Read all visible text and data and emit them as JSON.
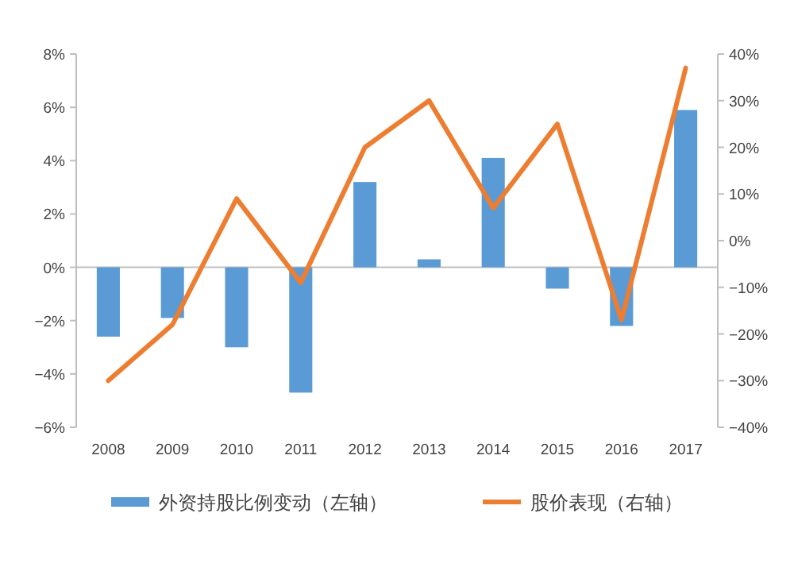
{
  "chart_data": {
    "type": "bar",
    "categories": [
      "2008",
      "2009",
      "2010",
      "2011",
      "2012",
      "2013",
      "2014",
      "2015",
      "2016",
      "2017"
    ],
    "series": [
      {
        "name": "外资持股比例变动（左轴）",
        "color": "#5b9bd5",
        "values": [
          -2.6,
          -1.9,
          -3.0,
          -4.7,
          3.2,
          0.3,
          4.1,
          -0.8,
          -2.2,
          5.9
        ]
      },
      {
        "name": "股价表现（右轴）",
        "type": "line",
        "axis": "y2",
        "color": "#ed7d31",
        "values": [
          -30,
          -18,
          9,
          -9,
          20,
          30,
          7,
          25,
          -17,
          37
        ]
      }
    ],
    "ylim": [
      -6,
      8
    ],
    "yticks": [
      {
        "value": -6,
        "label": "−6%"
      },
      {
        "value": -4,
        "label": "−4%"
      },
      {
        "value": -2,
        "label": "−2%"
      },
      {
        "value": 0,
        "label": "0%"
      },
      {
        "value": 2,
        "label": "2%"
      },
      {
        "value": 4,
        "label": "4%"
      },
      {
        "value": 6,
        "label": "6%"
      },
      {
        "value": 8,
        "label": "8%"
      }
    ],
    "y2lim": [
      -40,
      40
    ],
    "y2ticks": [
      {
        "value": -40,
        "label": "−40%"
      },
      {
        "value": -30,
        "label": "−30%"
      },
      {
        "value": -20,
        "label": "−20%"
      },
      {
        "value": -10,
        "label": "−10%"
      },
      {
        "value": 0,
        "label": "0%"
      },
      {
        "value": 10,
        "label": "10%"
      },
      {
        "value": 20,
        "label": "20%"
      },
      {
        "value": 30,
        "label": "30%"
      },
      {
        "value": 40,
        "label": "40%"
      }
    ],
    "legend": "bottom",
    "marker": "none",
    "line_style": "solid"
  }
}
